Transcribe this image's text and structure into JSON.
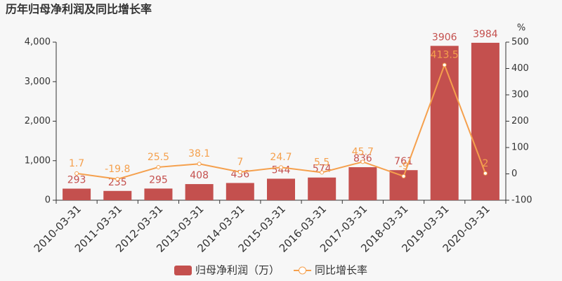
{
  "chart_data": {
    "type": "bar",
    "title": "历年归母净利润及同比增长率",
    "categories": [
      "2010-03-31",
      "2011-03-31",
      "2012-03-31",
      "2013-03-31",
      "2014-03-31",
      "2015-03-31",
      "2016-03-31",
      "2017-03-31",
      "2018-03-31",
      "2019-03-31",
      "2020-03-31"
    ],
    "series": [
      {
        "name": "归母净利润（万）",
        "type": "bar",
        "color": "#c4504e",
        "values": [
          293,
          235,
          295,
          408,
          436,
          544,
          574,
          836,
          761,
          3906,
          3984
        ]
      },
      {
        "name": "同比增长率",
        "type": "line",
        "axis": "y2",
        "color": "#f5a04d",
        "values": [
          1.7,
          -19.8,
          25.5,
          38.1,
          7,
          24.7,
          5.5,
          45.7,
          -9,
          413.5,
          2
        ]
      }
    ],
    "ylim": [
      0,
      4000
    ],
    "yticks": [
      0,
      {
        "value": 1000,
        "label": "1,000"
      },
      {
        "value": 2000,
        "label": "2,000"
      },
      {
        "value": 3000,
        "label": "3,000"
      },
      {
        "value": 4000,
        "label": "4,000"
      }
    ],
    "y2lim": [
      -100,
      500
    ],
    "y2ticks": [
      -100,
      0,
      100,
      200,
      300,
      400,
      500
    ],
    "y2label": "%",
    "grid": false,
    "legend": "bottom"
  }
}
